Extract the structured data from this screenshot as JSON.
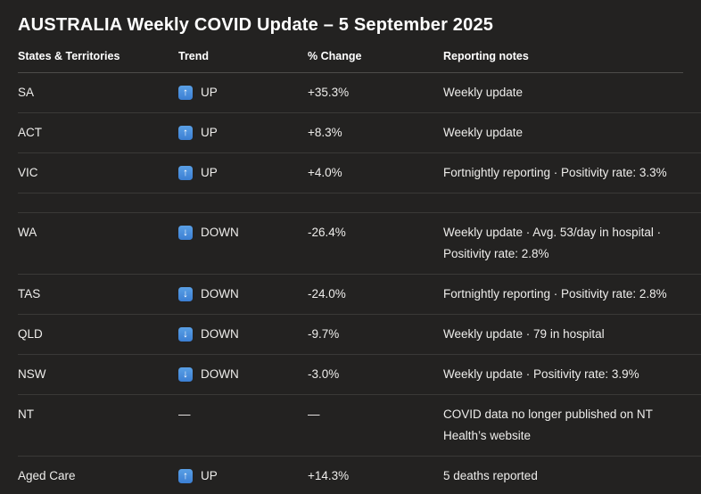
{
  "page": {
    "title": "AUSTRALIA Weekly COVID Update – 5 September 2025"
  },
  "colors": {
    "background": "#232221",
    "text": "#eeedeb",
    "heading": "#ffffff",
    "divider": "#3a3937",
    "header_divider": "#4d4c4a",
    "trend_icon_blue": "#3b7fd3"
  },
  "icons": {
    "up": "↑",
    "down": "↓"
  },
  "table": {
    "columns": [
      "States & Territories",
      "Trend",
      "% Change",
      "Reporting notes"
    ],
    "rows": [
      {
        "state": "SA",
        "trend_direction": "up",
        "trend_label": "UP",
        "change": "+35.3%",
        "notes": "Weekly update"
      },
      {
        "state": "ACT",
        "trend_direction": "up",
        "trend_label": "UP",
        "change": "+8.3%",
        "notes": "Weekly update"
      },
      {
        "state": "VIC",
        "trend_direction": "up",
        "trend_label": "UP",
        "change": "+4.0%",
        "notes": "Fortnightly reporting · Positivity rate: 3.3%"
      },
      {
        "spacer": true
      },
      {
        "state": "WA",
        "trend_direction": "down",
        "trend_label": "DOWN",
        "change": "-26.4%",
        "notes": "Weekly update · Avg. 53/day in hospital · Positivity rate: 2.8%"
      },
      {
        "state": "TAS",
        "trend_direction": "down",
        "trend_label": "DOWN",
        "change": "-24.0%",
        "notes": "Fortnightly reporting · Positivity rate: 2.8%"
      },
      {
        "state": "QLD",
        "trend_direction": "down",
        "trend_label": "DOWN",
        "change": "-9.7%",
        "notes": "Weekly update · 79 in hospital"
      },
      {
        "state": "NSW",
        "trend_direction": "down",
        "trend_label": "DOWN",
        "change": "-3.0%",
        "notes": "Weekly update · Positivity rate: 3.9%"
      },
      {
        "state": "NT",
        "trend_direction": "none",
        "trend_label": "—",
        "change": "—",
        "notes": "COVID data no longer published on NT Health’s website"
      },
      {
        "state": "Aged Care",
        "trend_direction": "up",
        "trend_label": "UP",
        "change": "+14.3%",
        "notes": "5 deaths reported"
      }
    ]
  }
}
